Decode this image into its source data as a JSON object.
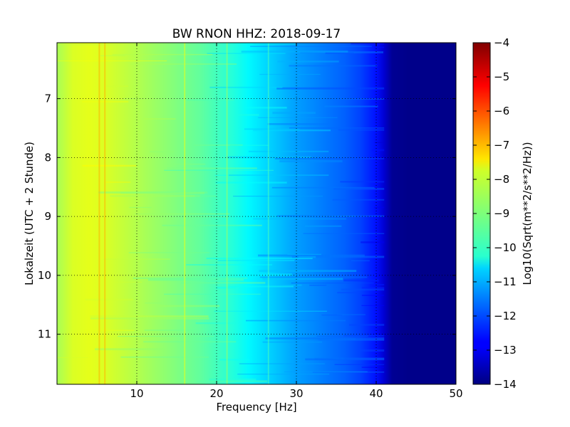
{
  "chart_data": {
    "type": "heatmap",
    "title": "BW RNON HHZ: 2018-09-17",
    "xlabel": "Frequency [Hz]",
    "ylabel": "Lokalzeit (UTC + 2 Stunde)",
    "xlim": [
      0,
      50
    ],
    "ylim": [
      11.85,
      6.05
    ],
    "x_ticks": [
      10,
      20,
      30,
      40,
      50
    ],
    "y_ticks": [
      7,
      8,
      9,
      10,
      11
    ],
    "grid": true,
    "colormap": "jet",
    "colorbar": {
      "label": "Log10(Sqrt(m**2/s**2/Hz))",
      "min": -14,
      "max": -4,
      "ticks": [
        -4,
        -5,
        -6,
        -7,
        -8,
        -9,
        -10,
        -11,
        -12,
        -13,
        -14
      ]
    },
    "frequency_hz": [
      0,
      2,
      4,
      6,
      8,
      10,
      12,
      14,
      16,
      18,
      20,
      22,
      24,
      26,
      28,
      30,
      32,
      34,
      36,
      38,
      40,
      41,
      42,
      44,
      46,
      48,
      50
    ],
    "spectral_level": [
      -8.6,
      -8.1,
      -8.0,
      -8.1,
      -8.3,
      -8.5,
      -8.7,
      -8.9,
      -9.1,
      -9.3,
      -9.6,
      -9.9,
      -10.3,
      -10.6,
      -10.9,
      -11.2,
      -11.4,
      -11.6,
      -11.8,
      -12.1,
      -12.6,
      -13.2,
      -13.8,
      -13.9,
      -13.9,
      -13.9,
      -13.9
    ],
    "spectral_lines_hz": [
      5.3,
      6.0,
      16.0,
      21.3,
      26.5
    ]
  }
}
